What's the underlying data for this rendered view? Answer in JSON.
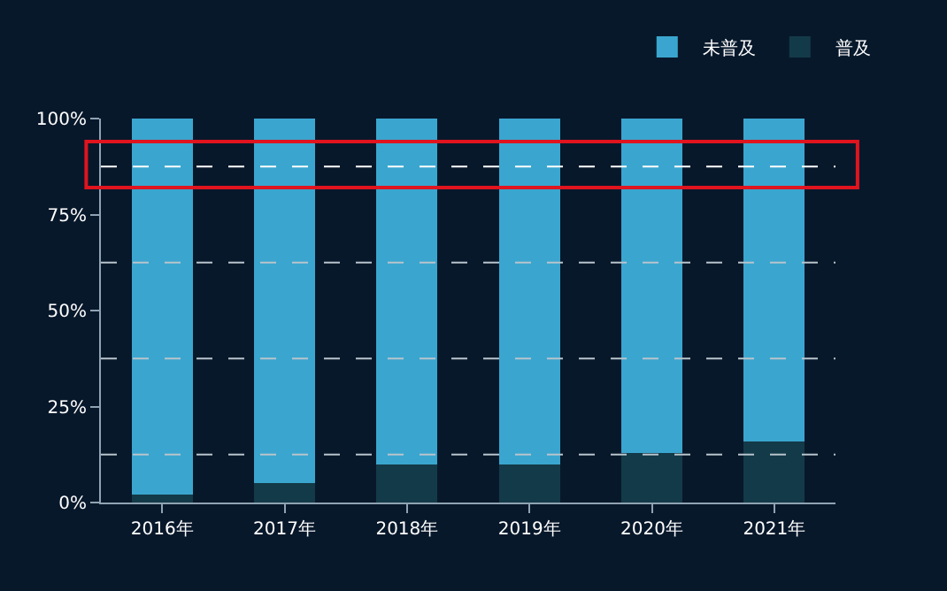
{
  "chart_data": {
    "type": "bar",
    "stacked": true,
    "categories": [
      "2016年",
      "2017年",
      "2018年",
      "2019年",
      "2020年",
      "2021年"
    ],
    "series": [
      {
        "name": "普及",
        "color": "#133a48",
        "values": [
          2,
          5,
          10,
          10,
          13,
          16
        ]
      },
      {
        "name": "未普及",
        "color": "#3aa6cf",
        "values": [
          98,
          95,
          90,
          90,
          87,
          84
        ]
      }
    ],
    "ylim": [
      0,
      100
    ],
    "yticks": [
      {
        "value": 0,
        "label": "0%"
      },
      {
        "value": 25,
        "label": "25%"
      },
      {
        "value": 50,
        "label": "50%"
      },
      {
        "value": 75,
        "label": "75%"
      },
      {
        "value": 100,
        "label": "100%"
      }
    ],
    "ref_lines": [
      {
        "axis": "y",
        "value": 12.5,
        "line_style": "dashed",
        "color": "#b8c4cc"
      },
      {
        "axis": "y",
        "value": 37.5,
        "line_style": "dashed",
        "color": "#b8c4cc"
      },
      {
        "axis": "y",
        "value": 62.5,
        "line_style": "dashed",
        "color": "#b8c4cc"
      },
      {
        "axis": "y",
        "value": 87.5,
        "line_style": "dashed",
        "color": "#ffffff"
      }
    ],
    "grid": false,
    "legend": "top right"
  }
}
